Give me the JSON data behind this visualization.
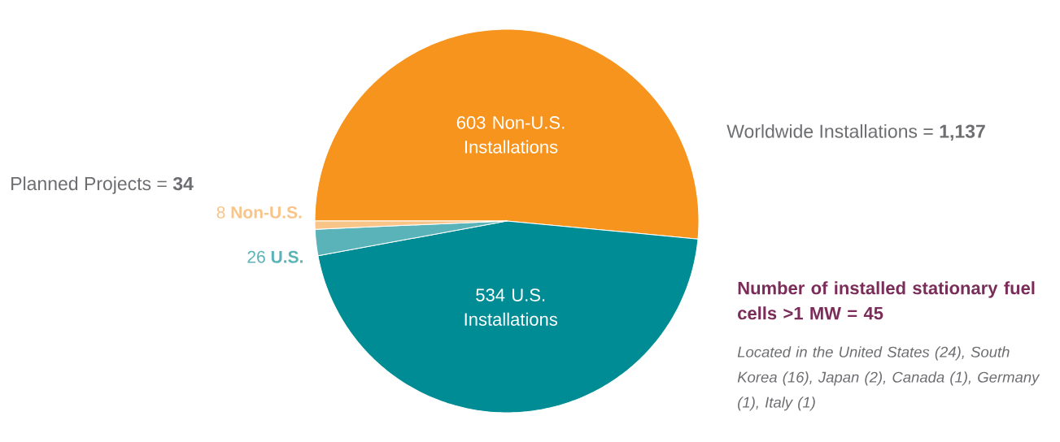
{
  "chart_data": {
    "type": "pie",
    "categories": [
      "603 Non-U.S. Installations",
      "534 U.S. Installations",
      "26 **U.S.**",
      "8 **Non-U.S.**"
    ],
    "values": [
      603,
      534,
      26,
      8
    ],
    "colors": [
      "#f7941d",
      "#008c95",
      "#5ab3b8",
      "#f9c488"
    ],
    "annotations": [
      "Planned Projects = **34**",
      "Worldwide Installations = **1,137**",
      "Number of installed stationary fuel cells >1 MW = 45",
      "*Located in the United States (24), South Korea (16), Japan (2), Canada (1), Germany (1), Italy (1)*"
    ]
  }
}
